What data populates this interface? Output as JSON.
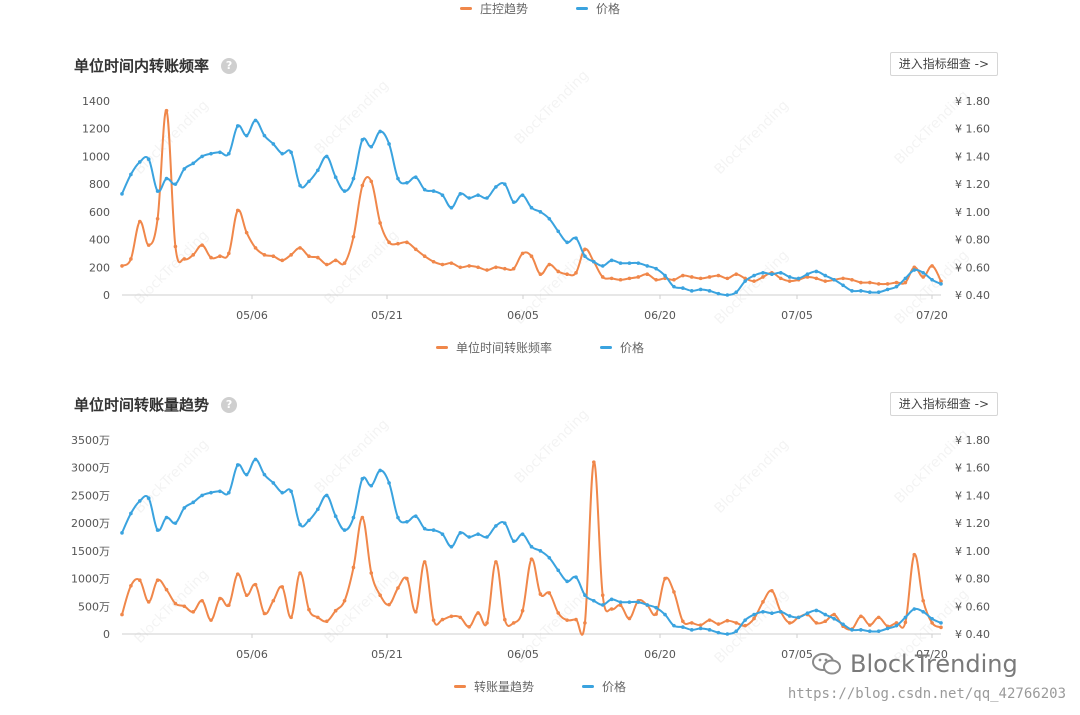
{
  "top_legend": {
    "series1": "庄控趋势",
    "series2": "价格"
  },
  "charts": [
    {
      "title": "单位时间内转账频率",
      "button": "进入指标细查 ->",
      "legend": {
        "series1": "单位时间转账频率",
        "series2": "价格"
      }
    },
    {
      "title": "单位时间转账量趋势",
      "button": "进入指标细查 ->",
      "legend": {
        "series1": "转账量趋势",
        "series2": "价格"
      }
    }
  ],
  "watermark": "BlockTrending",
  "footer": {
    "brand": "BlockTrending",
    "url": "https://blog.csdn.net/qq_42766203"
  },
  "colors": {
    "orange": "#f0874a",
    "blue": "#3aa3df"
  },
  "chart_data": [
    {
      "type": "line",
      "x_ticks": [
        "05/06",
        "05/21",
        "06/05",
        "06/20",
        "07/05",
        "07/20"
      ],
      "y_left_ticks": [
        "0",
        "200",
        "400",
        "600",
        "800",
        "1000",
        "1200",
        "1400"
      ],
      "y_right_ticks": [
        "¥ 0.40",
        "¥ 0.60",
        "¥ 0.80",
        "¥ 1.00",
        "¥ 1.20",
        "¥ 1.40",
        "¥ 1.60",
        "¥ 1.80"
      ],
      "y_left_range": [
        0,
        1400
      ],
      "y_right_range": [
        0.4,
        1.8
      ],
      "series": [
        {
          "name": "单位时间转账频率",
          "axis": "left",
          "values": [
            210,
            260,
            530,
            360,
            550,
            1330,
            350,
            260,
            290,
            360,
            270,
            280,
            300,
            610,
            450,
            340,
            290,
            280,
            250,
            290,
            340,
            280,
            270,
            220,
            250,
            230,
            420,
            790,
            820,
            520,
            380,
            370,
            380,
            330,
            280,
            240,
            220,
            230,
            200,
            210,
            200,
            180,
            200,
            190,
            190,
            300,
            280,
            150,
            220,
            170,
            150,
            160,
            330,
            240,
            130,
            120,
            110,
            120,
            130,
            150,
            110,
            120,
            110,
            140,
            130,
            120,
            130,
            140,
            120,
            150,
            120,
            100,
            130,
            160,
            120,
            100,
            110,
            130,
            120,
            100,
            110,
            120,
            110,
            90,
            90,
            80,
            80,
            90,
            90,
            200,
            130,
            210,
            100
          ]
        },
        {
          "name": "价格",
          "axis": "right",
          "values": [
            1.13,
            1.27,
            1.36,
            1.38,
            1.15,
            1.24,
            1.2,
            1.31,
            1.35,
            1.4,
            1.42,
            1.43,
            1.42,
            1.62,
            1.55,
            1.66,
            1.55,
            1.49,
            1.42,
            1.43,
            1.19,
            1.22,
            1.3,
            1.4,
            1.25,
            1.15,
            1.24,
            1.52,
            1.47,
            1.58,
            1.49,
            1.24,
            1.21,
            1.25,
            1.16,
            1.15,
            1.12,
            1.03,
            1.13,
            1.1,
            1.12,
            1.1,
            1.18,
            1.2,
            1.07,
            1.12,
            1.03,
            1.0,
            0.95,
            0.86,
            0.78,
            0.81,
            0.68,
            0.64,
            0.61,
            0.65,
            0.63,
            0.63,
            0.63,
            0.61,
            0.59,
            0.54,
            0.46,
            0.45,
            0.43,
            0.44,
            0.43,
            0.41,
            0.4,
            0.42,
            0.5,
            0.54,
            0.56,
            0.55,
            0.56,
            0.53,
            0.52,
            0.55,
            0.57,
            0.54,
            0.51,
            0.47,
            0.43,
            0.43,
            0.42,
            0.42,
            0.44,
            0.46,
            0.52,
            0.58,
            0.56,
            0.51,
            0.48
          ]
        }
      ]
    },
    {
      "type": "line",
      "x_ticks": [
        "05/06",
        "05/21",
        "06/05",
        "06/20",
        "07/05",
        "07/20"
      ],
      "y_left_ticks": [
        "0",
        "500万",
        "1000万",
        "1500万",
        "2000万",
        "2500万",
        "3000万",
        "3500万"
      ],
      "y_right_ticks": [
        "¥ 0.40",
        "¥ 0.60",
        "¥ 0.80",
        "¥ 1.00",
        "¥ 1.20",
        "¥ 1.40",
        "¥ 1.60",
        "¥ 1.80"
      ],
      "y_left_range": [
        0,
        3500
      ],
      "y_right_range": [
        0.4,
        1.8
      ],
      "series": [
        {
          "name": "转账量趋势",
          "axis": "left",
          "values": [
            350,
            870,
            970,
            580,
            970,
            800,
            550,
            500,
            400,
            600,
            250,
            640,
            520,
            1080,
            700,
            890,
            370,
            600,
            850,
            300,
            1100,
            440,
            300,
            230,
            420,
            600,
            1200,
            2100,
            1100,
            700,
            530,
            830,
            1000,
            400,
            1300,
            250,
            260,
            320,
            300,
            130,
            380,
            200,
            1300,
            260,
            200,
            420,
            1350,
            720,
            740,
            380,
            250,
            260,
            200,
            3100,
            700,
            450,
            520,
            280,
            600,
            520,
            360,
            1000,
            760,
            230,
            200,
            160,
            250,
            180,
            240,
            200,
            150,
            280,
            580,
            780,
            400,
            200,
            300,
            350,
            200,
            230,
            350,
            140,
            90,
            320,
            160,
            300,
            140,
            200,
            210,
            1430,
            600,
            200,
            120
          ]
        },
        {
          "name": "价格",
          "axis": "right",
          "values": [
            1.13,
            1.27,
            1.36,
            1.38,
            1.15,
            1.24,
            1.2,
            1.31,
            1.35,
            1.4,
            1.42,
            1.43,
            1.42,
            1.62,
            1.55,
            1.66,
            1.55,
            1.49,
            1.42,
            1.43,
            1.19,
            1.22,
            1.3,
            1.4,
            1.25,
            1.15,
            1.24,
            1.52,
            1.47,
            1.58,
            1.49,
            1.24,
            1.21,
            1.25,
            1.16,
            1.15,
            1.12,
            1.03,
            1.13,
            1.1,
            1.12,
            1.1,
            1.18,
            1.2,
            1.07,
            1.12,
            1.03,
            1.0,
            0.95,
            0.86,
            0.78,
            0.81,
            0.68,
            0.64,
            0.61,
            0.65,
            0.63,
            0.63,
            0.63,
            0.61,
            0.59,
            0.54,
            0.46,
            0.45,
            0.43,
            0.44,
            0.43,
            0.41,
            0.4,
            0.42,
            0.5,
            0.54,
            0.56,
            0.55,
            0.56,
            0.53,
            0.52,
            0.55,
            0.57,
            0.54,
            0.51,
            0.47,
            0.43,
            0.43,
            0.42,
            0.42,
            0.44,
            0.46,
            0.52,
            0.58,
            0.56,
            0.51,
            0.48
          ]
        }
      ]
    }
  ]
}
